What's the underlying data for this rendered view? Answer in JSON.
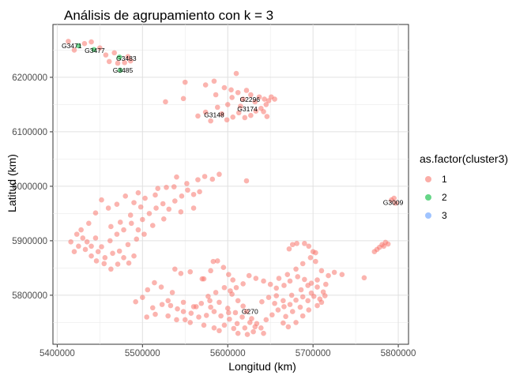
{
  "chart_data": {
    "type": "scatter",
    "title": "Análisis de agrupamiento con k = 3",
    "xlabel": "Longitud (km)",
    "ylabel": "Latitud (km)",
    "xlim": [
      5395000,
      5812000
    ],
    "ylim": [
      5710000,
      6297000
    ],
    "x_ticks": [
      5400000,
      5500000,
      5600000,
      5700000,
      5800000
    ],
    "x_tick_labels": [
      "5400000",
      "5500000",
      "5600000",
      "5700000",
      "5800000"
    ],
    "y_ticks": [
      5800000,
      5900000,
      6000000,
      6100000,
      6200000
    ],
    "y_tick_labels": [
      "5800000",
      "5900000",
      "6000000",
      "6100000",
      "6200000"
    ],
    "grid": true,
    "legend_position": "right",
    "legend": {
      "title": "as.factor(cluster3)",
      "entries": [
        {
          "label": "1",
          "color": "#F8766D"
        },
        {
          "label": "2",
          "color": "#00BA38"
        },
        {
          "label": "3",
          "color": "#619CFF"
        }
      ]
    },
    "point_labels": [
      {
        "text": "G3471",
        "x": 5417000,
        "y": 6258000
      },
      {
        "text": "G3477",
        "x": 5444000,
        "y": 6249000
      },
      {
        "text": "G3483",
        "x": 5481000,
        "y": 6235000
      },
      {
        "text": "G3485",
        "x": 5477000,
        "y": 6213000
      },
      {
        "text": "G2296",
        "x": 5626000,
        "y": 6159000
      },
      {
        "text": "G3174",
        "x": 5623000,
        "y": 6142000
      },
      {
        "text": "G3148",
        "x": 5584000,
        "y": 6131000
      },
      {
        "text": "G3009",
        "x": 5794000,
        "y": 5970000
      },
      {
        "text": "G270",
        "x": 5626000,
        "y": 5770000
      }
    ],
    "series": [
      {
        "name": "2",
        "color": "#00BA38",
        "points": [
          [
            5425000,
            6258000
          ],
          [
            5443000,
            6251000
          ],
          [
            5473000,
            6237000
          ],
          [
            5474000,
            6213000
          ]
        ]
      },
      {
        "name": "1",
        "color": "#F8766D",
        "points": [
          [
            5413000,
            6266000
          ],
          [
            5420000,
            6250000
          ],
          [
            5432000,
            6262000
          ],
          [
            5440000,
            6265000
          ],
          [
            5450000,
            6254000
          ],
          [
            5457000,
            6241000
          ],
          [
            5461000,
            6229000
          ],
          [
            5467000,
            6245000
          ],
          [
            5471000,
            6226000
          ],
          [
            5483000,
            6238000
          ],
          [
            5486000,
            6230000
          ],
          [
            5479000,
            6227000
          ],
          [
            5550000,
            6191000
          ],
          [
            5548000,
            6161000
          ],
          [
            5527000,
            6155000
          ],
          [
            5574000,
            6186000
          ],
          [
            5584000,
            6193000
          ],
          [
            5596000,
            6181000
          ],
          [
            5610000,
            6207000
          ],
          [
            5604000,
            6177000
          ],
          [
            5612000,
            6172000
          ],
          [
            5622000,
            6176000
          ],
          [
            5627000,
            6168000
          ],
          [
            5637000,
            6164000
          ],
          [
            5643000,
            6160000
          ],
          [
            5648000,
            6157000
          ],
          [
            5651000,
            6164000
          ],
          [
            5645000,
            6150000
          ],
          [
            5639000,
            6143000
          ],
          [
            5633000,
            6138000
          ],
          [
            5627000,
            6130000
          ],
          [
            5620000,
            6126000
          ],
          [
            5613000,
            6135000
          ],
          [
            5606000,
            6127000
          ],
          [
            5599000,
            6122000
          ],
          [
            5593000,
            6133000
          ],
          [
            5588000,
            6145000
          ],
          [
            5600000,
            6150000
          ],
          [
            5615000,
            6147000
          ],
          [
            5632000,
            6155000
          ],
          [
            5642000,
            6137000
          ],
          [
            5605000,
            6163000
          ],
          [
            5586000,
            6168000
          ],
          [
            5574000,
            6136000
          ],
          [
            5565000,
            6129000
          ],
          [
            5618000,
            6160000
          ],
          [
            5646000,
            6128000
          ],
          [
            5655000,
            6160000
          ],
          [
            5580000,
            6120000
          ],
          [
            5590000,
            6022000
          ],
          [
            5582000,
            6013000
          ],
          [
            5573000,
            6018000
          ],
          [
            5565000,
            6012000
          ],
          [
            5552000,
            6005000
          ],
          [
            5537000,
            5999000
          ],
          [
            5540000,
            6017000
          ],
          [
            5528000,
            5998000
          ],
          [
            5515000,
            5984000
          ],
          [
            5503000,
            5978000
          ],
          [
            5490000,
            5970000
          ],
          [
            5480000,
            5982000
          ],
          [
            5470000,
            5967000
          ],
          [
            5460000,
            5960000
          ],
          [
            5452000,
            5975000
          ],
          [
            5445000,
            5951000
          ],
          [
            5437000,
            5932000
          ],
          [
            5428000,
            5920000
          ],
          [
            5423000,
            5912000
          ],
          [
            5416000,
            5898000
          ],
          [
            5425000,
            5890000
          ],
          [
            5433000,
            5884000
          ],
          [
            5440000,
            5872000
          ],
          [
            5446000,
            5863000
          ],
          [
            5455000,
            5858000
          ],
          [
            5463000,
            5848000
          ],
          [
            5471000,
            5857000
          ],
          [
            5478000,
            5869000
          ],
          [
            5484000,
            5859000
          ],
          [
            5490000,
            5872000
          ],
          [
            5452000,
            5889000
          ],
          [
            5445000,
            5905000
          ],
          [
            5435000,
            5898000
          ],
          [
            5462000,
            5900000
          ],
          [
            5470000,
            5912000
          ],
          [
            5478000,
            5920000
          ],
          [
            5487000,
            5932000
          ],
          [
            5495000,
            5920000
          ],
          [
            5500000,
            5939000
          ],
          [
            5508000,
            5950000
          ],
          [
            5516000,
            5960000
          ],
          [
            5524000,
            5968000
          ],
          [
            5531000,
            5958000
          ],
          [
            5538000,
            5973000
          ],
          [
            5546000,
            5982000
          ],
          [
            5553000,
            5993000
          ],
          [
            5560000,
            5985000
          ],
          [
            5567000,
            5990000
          ],
          [
            5545000,
            5953000
          ],
          [
            5525000,
            5940000
          ],
          [
            5512000,
            5928000
          ],
          [
            5502000,
            5912000
          ],
          [
            5493000,
            5903000
          ],
          [
            5483000,
            5893000
          ],
          [
            5473000,
            5881000
          ],
          [
            5465000,
            5877000
          ],
          [
            5456000,
            5869000
          ],
          [
            5448000,
            5880000
          ],
          [
            5440000,
            5890000
          ],
          [
            5430000,
            5905000
          ],
          [
            5420000,
            5880000
          ],
          [
            5463000,
            5926000
          ],
          [
            5474000,
            5934000
          ],
          [
            5486000,
            5947000
          ],
          [
            5498000,
            5962000
          ],
          [
            5518000,
            5996000
          ],
          [
            5495000,
            5988000
          ],
          [
            5560000,
            5960000
          ],
          [
            5622000,
            6010000
          ],
          [
            5545000,
            5840000
          ],
          [
            5556000,
            5843000
          ],
          [
            5572000,
            5830000
          ],
          [
            5580000,
            5845000
          ],
          [
            5583000,
            5862000
          ],
          [
            5588000,
            5863000
          ],
          [
            5595000,
            5851000
          ],
          [
            5601000,
            5838000
          ],
          [
            5606000,
            5828000
          ],
          [
            5596000,
            5814000
          ],
          [
            5586000,
            5805000
          ],
          [
            5577000,
            5798000
          ],
          [
            5605000,
            5802000
          ],
          [
            5612000,
            5790000
          ],
          [
            5618000,
            5780000
          ],
          [
            5622000,
            5770000
          ],
          [
            5628000,
            5757000
          ],
          [
            5634000,
            5748000
          ],
          [
            5639000,
            5740000
          ],
          [
            5630000,
            5733000
          ],
          [
            5620000,
            5740000
          ],
          [
            5611000,
            5748000
          ],
          [
            5602000,
            5756000
          ],
          [
            5592000,
            5762000
          ],
          [
            5584000,
            5770000
          ],
          [
            5575000,
            5763000
          ],
          [
            5566000,
            5760000
          ],
          [
            5557000,
            5767000
          ],
          [
            5548000,
            5770000
          ],
          [
            5541000,
            5775000
          ],
          [
            5533000,
            5781000
          ],
          [
            5523000,
            5783000
          ],
          [
            5512000,
            5777000
          ],
          [
            5500000,
            5796000
          ],
          [
            5492000,
            5788000
          ],
          [
            5506000,
            5810000
          ],
          [
            5514000,
            5823000
          ],
          [
            5522000,
            5815000
          ],
          [
            5535000,
            5805000
          ],
          [
            5548000,
            5787000
          ],
          [
            5560000,
            5779000
          ],
          [
            5569000,
            5785000
          ],
          [
            5580000,
            5778000
          ],
          [
            5590000,
            5787000
          ],
          [
            5600000,
            5776000
          ],
          [
            5609000,
            5768000
          ],
          [
            5617000,
            5760000
          ],
          [
            5626000,
            5750000
          ],
          [
            5645000,
            5755000
          ],
          [
            5652000,
            5764000
          ],
          [
            5659000,
            5773000
          ],
          [
            5666000,
            5779000
          ],
          [
            5673000,
            5783000
          ],
          [
            5680000,
            5791000
          ],
          [
            5688000,
            5797000
          ],
          [
            5694000,
            5790000
          ],
          [
            5701000,
            5798000
          ],
          [
            5708000,
            5793000
          ],
          [
            5712000,
            5806000
          ],
          [
            5705000,
            5815000
          ],
          [
            5698000,
            5822000
          ],
          [
            5690000,
            5829000
          ],
          [
            5682000,
            5834000
          ],
          [
            5673000,
            5826000
          ],
          [
            5666000,
            5818000
          ],
          [
            5657000,
            5813000
          ],
          [
            5650000,
            5820000
          ],
          [
            5642000,
            5826000
          ],
          [
            5633000,
            5831000
          ],
          [
            5625000,
            5836000
          ],
          [
            5618000,
            5821000
          ],
          [
            5610000,
            5814000
          ],
          [
            5603000,
            5808000
          ],
          [
            5660000,
            5831000
          ],
          [
            5670000,
            5838000
          ],
          [
            5680000,
            5848000
          ],
          [
            5688000,
            5858000
          ],
          [
            5697000,
            5869000
          ],
          [
            5703000,
            5878000
          ],
          [
            5695000,
            5890000
          ],
          [
            5681000,
            5895000
          ],
          [
            5676000,
            5893000
          ],
          [
            5672000,
            5885000
          ],
          [
            5710000,
            5845000
          ],
          [
            5718000,
            5836000
          ],
          [
            5725000,
            5842000
          ],
          [
            5734000,
            5838000
          ],
          [
            5703000,
            5862000
          ],
          [
            5705000,
            5828000
          ],
          [
            5715000,
            5820000
          ],
          [
            5698000,
            5804000
          ],
          [
            5685000,
            5778000
          ],
          [
            5676000,
            5770000
          ],
          [
            5668000,
            5761000
          ],
          [
            5665000,
            5749000
          ],
          [
            5671000,
            5742000
          ],
          [
            5680000,
            5750000
          ],
          [
            5688000,
            5762000
          ],
          [
            5695000,
            5773000
          ],
          [
            5705000,
            5781000
          ],
          [
            5710000,
            5787000
          ],
          [
            5640000,
            5788000
          ],
          [
            5648000,
            5796000
          ],
          [
            5657000,
            5799000
          ],
          [
            5665000,
            5790000
          ],
          [
            5675000,
            5800000
          ],
          [
            5686000,
            5810000
          ],
          [
            5694000,
            5818000
          ],
          [
            5714000,
            5799000
          ],
          [
            5655000,
            5785000
          ],
          [
            5572000,
            5745000
          ],
          [
            5556000,
            5750000
          ],
          [
            5584000,
            5740000
          ],
          [
            5596000,
            5745000
          ],
          [
            5607000,
            5739000
          ],
          [
            5623000,
            5728000
          ],
          [
            5632000,
            5742000
          ],
          [
            5601000,
            5768000
          ],
          [
            5563000,
            5779000
          ],
          [
            5579000,
            5790000
          ],
          [
            5550000,
            5755000
          ],
          [
            5540000,
            5755000
          ],
          [
            5530000,
            5762000
          ],
          [
            5515000,
            5765000
          ],
          [
            5505000,
            5760000
          ],
          [
            5642000,
            5730000
          ],
          [
            5612000,
            5730000
          ],
          [
            5590000,
            5735000
          ],
          [
            5530000,
            5790000
          ],
          [
            5538000,
            5848000
          ],
          [
            5570000,
            5830000
          ],
          [
            5760000,
            5832000
          ],
          [
            5700000,
            5880000
          ],
          [
            5690000,
            5895000
          ],
          [
            5775000,
            5884000
          ],
          [
            5778000,
            5888000
          ],
          [
            5781000,
            5893000
          ],
          [
            5785000,
            5897000
          ],
          [
            5772000,
            5880000
          ],
          [
            5788000,
            5894000
          ],
          [
            5783000,
            5890000
          ],
          [
            5792000,
            5975000
          ],
          [
            5797000,
            5969000
          ],
          [
            5795000,
            5978000
          ]
        ]
      },
      {
        "name": "3",
        "color": "#619CFF",
        "points": []
      }
    ]
  }
}
